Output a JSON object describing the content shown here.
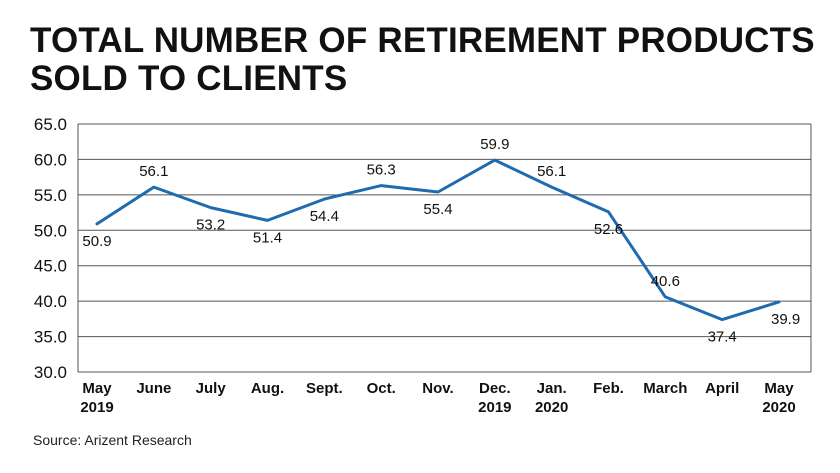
{
  "title_lines": [
    "TOTAL NUMBER OF RETIREMENT PRODUCTS",
    "SOLD TO CLIENTS"
  ],
  "source": "Source: Arizent Research",
  "colors": {
    "line": "#1f6bb0",
    "grid": "#555555",
    "text": "#111111"
  },
  "chart_data": {
    "type": "line",
    "categories": [
      [
        "May",
        "2019"
      ],
      [
        "June"
      ],
      [
        "July"
      ],
      [
        "Aug."
      ],
      [
        "Sept."
      ],
      [
        "Oct."
      ],
      [
        "Nov."
      ],
      [
        "Dec.",
        "2019"
      ],
      [
        "Jan.",
        "2020"
      ],
      [
        "Feb."
      ],
      [
        "March"
      ],
      [
        "April"
      ],
      [
        "May",
        "2020"
      ]
    ],
    "series": [
      {
        "values": [
          50.9,
          56.1,
          53.2,
          51.4,
          54.4,
          56.3,
          55.4,
          59.9,
          56.1,
          52.6,
          40.6,
          37.4,
          39.9
        ]
      }
    ],
    "data_labels": [
      "50.9",
      "56.1",
      "53.2",
      "51.4",
      "54.4",
      "56.3",
      "55.4",
      "59.9",
      "56.1",
      "52.6",
      "40.6",
      "37.4",
      "39.9"
    ],
    "y_ticks": [
      "30.0",
      "35.0",
      "40.0",
      "45.0",
      "50.0",
      "55.0",
      "60.0",
      "65.0"
    ],
    "ylim": [
      30,
      65
    ],
    "grid": true,
    "legend": "none"
  }
}
